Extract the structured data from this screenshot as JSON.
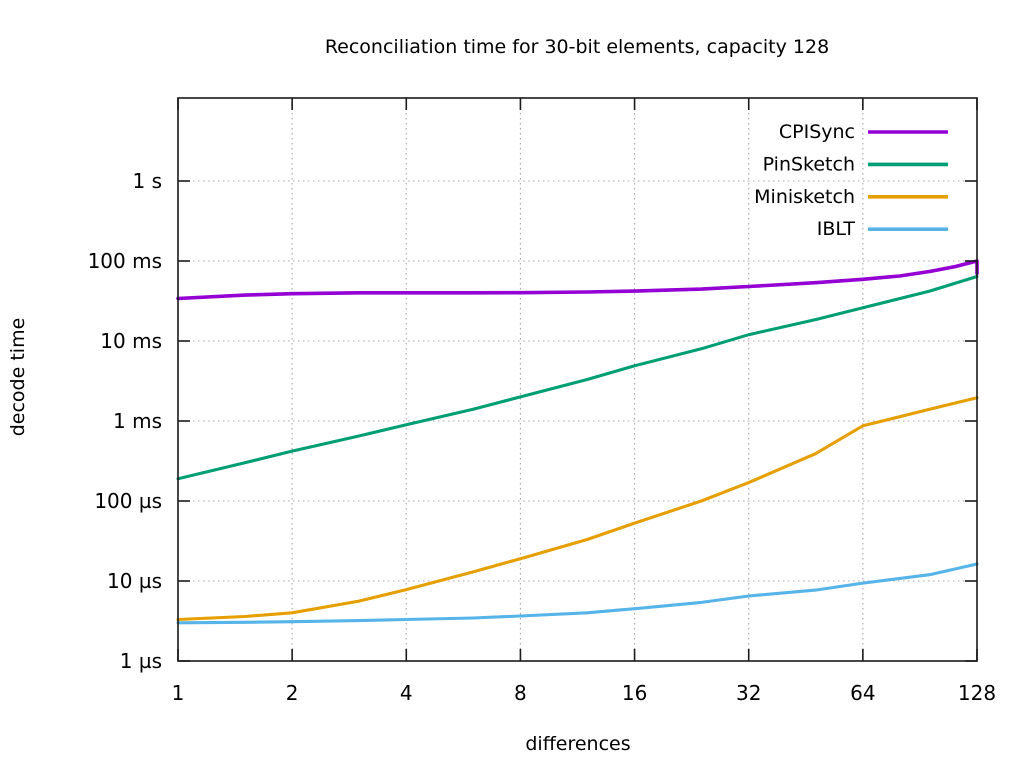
{
  "chart_data": {
    "type": "line",
    "title": "Reconciliation time for 30-bit elements, capacity 128",
    "xlabel": "differences",
    "ylabel": "decode time",
    "x_scale": "log2",
    "y_scale": "log10",
    "xlim": [
      1,
      128
    ],
    "x_ticks": [
      1,
      2,
      4,
      8,
      16,
      32,
      64,
      128
    ],
    "y_ticks": [
      {
        "label": "1 s",
        "us": 1000000
      },
      {
        "label": "100 ms",
        "us": 100000
      },
      {
        "label": "10 ms",
        "us": 10000
      },
      {
        "label": "1 ms",
        "us": 1000
      },
      {
        "label": "100 µs",
        "us": 100
      },
      {
        "label": "10 µs",
        "us": 10
      },
      {
        "label": "1 µs",
        "us": 1
      }
    ],
    "grid": "dotted",
    "legend_position": "top-right-inside",
    "legend_entries": [
      "CPISync",
      "PinSketch",
      "Minisketch",
      "IBLT"
    ],
    "units": "microseconds",
    "series": [
      {
        "name": "CPISync",
        "color": "#9400d3",
        "points_x_us": [
          [
            1,
            34000
          ],
          [
            1.5,
            37500
          ],
          [
            2,
            39000
          ],
          [
            3,
            40000
          ],
          [
            4,
            40000
          ],
          [
            6,
            40000
          ],
          [
            8,
            40200
          ],
          [
            12,
            41000
          ],
          [
            16,
            42000
          ],
          [
            24,
            44500
          ],
          [
            32,
            48000
          ],
          [
            48,
            53500
          ],
          [
            64,
            59000
          ],
          [
            80,
            65000
          ],
          [
            96,
            74000
          ],
          [
            112,
            85000
          ],
          [
            128,
            100000
          ],
          [
            128,
            70000
          ]
        ]
      },
      {
        "name": "PinSketch",
        "color": "#009e73",
        "points_x_us": [
          [
            1,
            190
          ],
          [
            1.5,
            300
          ],
          [
            2,
            420
          ],
          [
            3,
            650
          ],
          [
            4,
            900
          ],
          [
            6,
            1400
          ],
          [
            8,
            2000
          ],
          [
            12,
            3300
          ],
          [
            16,
            4900
          ],
          [
            24,
            8000
          ],
          [
            32,
            12000
          ],
          [
            48,
            18500
          ],
          [
            64,
            26000
          ],
          [
            96,
            42000
          ],
          [
            128,
            64000
          ]
        ]
      },
      {
        "name": "Minisketch",
        "color": "#e69f00",
        "points_x_us": [
          [
            1,
            3.3
          ],
          [
            1.5,
            3.6
          ],
          [
            2,
            4.0
          ],
          [
            3,
            5.6
          ],
          [
            4,
            7.8
          ],
          [
            6,
            13
          ],
          [
            8,
            19
          ],
          [
            12,
            33
          ],
          [
            16,
            53
          ],
          [
            24,
            100
          ],
          [
            32,
            170
          ],
          [
            48,
            390
          ],
          [
            64,
            870
          ],
          [
            96,
            1400
          ],
          [
            128,
            1950
          ]
        ]
      },
      {
        "name": "IBLT",
        "color": "#56b4e9",
        "points_x_us": [
          [
            1,
            3.0
          ],
          [
            1.5,
            3.05
          ],
          [
            2,
            3.1
          ],
          [
            3,
            3.2
          ],
          [
            4,
            3.3
          ],
          [
            6,
            3.45
          ],
          [
            8,
            3.65
          ],
          [
            12,
            4.0
          ],
          [
            16,
            4.5
          ],
          [
            24,
            5.4
          ],
          [
            32,
            6.5
          ],
          [
            48,
            7.7
          ],
          [
            64,
            9.4
          ],
          [
            96,
            12.0
          ],
          [
            128,
            16.3
          ]
        ]
      }
    ]
  },
  "colors": {
    "background": "#ffffff",
    "border": "#1a1a1a",
    "grid": "#a6a6a6",
    "text": "#000000"
  }
}
